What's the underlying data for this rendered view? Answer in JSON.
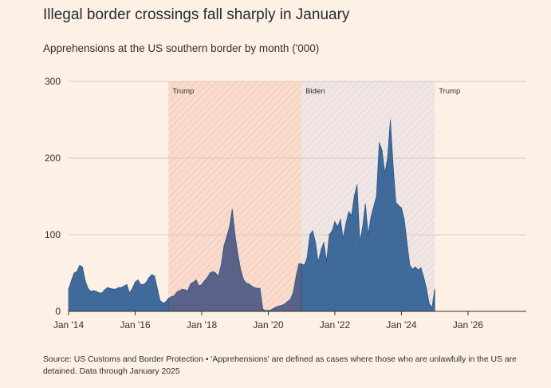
{
  "header": {
    "title": "Illegal border crossings fall sharply in January",
    "subtitle": "Apprehensions at the US southern border by month ('000)"
  },
  "footer": {
    "source": "Source: US Customs and Border Protection • 'Apprehensions' are defined as cases where those who are unlawfully in the US are detained. Data through January 2025"
  },
  "colors": {
    "background": "#fdf1e5",
    "area": "#3f6a99",
    "area_trump1": "#5a6289",
    "area_stroke": "#2d5485",
    "grid": "#d9c9bd",
    "trump_shade": "#f6d4c3",
    "biden_shade": "#dfe1ee"
  },
  "chart_data": {
    "type": "area",
    "title": "Illegal border crossings fall sharply in January",
    "subtitle": "Apprehensions at the US southern border by month ('000)",
    "xlabel": "",
    "ylabel": "",
    "ylim": [
      0,
      300
    ],
    "xlim": [
      "2014-01",
      "2027-10"
    ],
    "y_ticks": [
      0,
      100,
      200,
      300
    ],
    "x_ticks": [
      {
        "date": "2014-01",
        "label": "Jan '14"
      },
      {
        "date": "2016-01",
        "label": "Jan '16"
      },
      {
        "date": "2018-01",
        "label": "Jan '18"
      },
      {
        "date": "2020-01",
        "label": "Jan '20"
      },
      {
        "date": "2022-01",
        "label": "Jan '22"
      },
      {
        "date": "2024-01",
        "label": "Jan '24"
      },
      {
        "date": "2026-01",
        "label": "Jan '26"
      }
    ],
    "grid": true,
    "periods": [
      {
        "label": "Trump",
        "start": "2017-01",
        "end": "2021-01",
        "style": "trump"
      },
      {
        "label": "Biden",
        "start": "2021-01",
        "end": "2025-01",
        "style": "biden"
      },
      {
        "label": "Trump",
        "start": "2025-01",
        "end": null,
        "style": "trump"
      }
    ],
    "series": [
      {
        "x": [
          "2014-01",
          "2014-02",
          "2014-03",
          "2014-04",
          "2014-05",
          "2014-06",
          "2014-07",
          "2014-08",
          "2014-09",
          "2014-10",
          "2014-11",
          "2014-12",
          "2015-01",
          "2015-02",
          "2015-03",
          "2015-04",
          "2015-05",
          "2015-06",
          "2015-07",
          "2015-08",
          "2015-09",
          "2015-10",
          "2015-11",
          "2015-12",
          "2016-01",
          "2016-02",
          "2016-03",
          "2016-04",
          "2016-05",
          "2016-06",
          "2016-07",
          "2016-08",
          "2016-09",
          "2016-10",
          "2016-11",
          "2016-12",
          "2017-01",
          "2017-02",
          "2017-03",
          "2017-04",
          "2017-05",
          "2017-06",
          "2017-07",
          "2017-08",
          "2017-09",
          "2017-10",
          "2017-11",
          "2017-12",
          "2018-01",
          "2018-02",
          "2018-03",
          "2018-04",
          "2018-05",
          "2018-06",
          "2018-07",
          "2018-08",
          "2018-09",
          "2018-10",
          "2018-11",
          "2018-12",
          "2019-01",
          "2019-02",
          "2019-03",
          "2019-04",
          "2019-05",
          "2019-06",
          "2019-07",
          "2019-08",
          "2019-09",
          "2019-10",
          "2019-11",
          "2019-12",
          "2020-01",
          "2020-02",
          "2020-03",
          "2020-04",
          "2020-05",
          "2020-06",
          "2020-07",
          "2020-08",
          "2020-09",
          "2020-10",
          "2020-11",
          "2020-12",
          "2021-01",
          "2021-02",
          "2021-03",
          "2021-04",
          "2021-05",
          "2021-06",
          "2021-07",
          "2021-08",
          "2021-09",
          "2021-10",
          "2021-11",
          "2021-12",
          "2022-01",
          "2022-02",
          "2022-03",
          "2022-04",
          "2022-05",
          "2022-06",
          "2022-07",
          "2022-08",
          "2022-09",
          "2022-10",
          "2022-11",
          "2022-12",
          "2023-01",
          "2023-02",
          "2023-03",
          "2023-04",
          "2023-05",
          "2023-06",
          "2023-07",
          "2023-08",
          "2023-09",
          "2023-10",
          "2023-11",
          "2023-12",
          "2024-01",
          "2024-02",
          "2024-03",
          "2024-04",
          "2024-05",
          "2024-06",
          "2024-07",
          "2024-08",
          "2024-09",
          "2024-10",
          "2024-11",
          "2024-12",
          "2025-01"
        ],
        "values": [
          29,
          40,
          50,
          52,
          60,
          58,
          40,
          30,
          26,
          27,
          26,
          24,
          24,
          28,
          31,
          30,
          29,
          29,
          31,
          31,
          33,
          35,
          24,
          30,
          38,
          41,
          35,
          35,
          38,
          44,
          48,
          46,
          30,
          14,
          11,
          12,
          17,
          19,
          20,
          25,
          27,
          29,
          28,
          27,
          36,
          38,
          41,
          33,
          35,
          40,
          44,
          50,
          52,
          50,
          46,
          60,
          85,
          97,
          110,
          133,
          100,
          75,
          55,
          42,
          37,
          36,
          33,
          31,
          30,
          30,
          3,
          1,
          1,
          2,
          4,
          6,
          7,
          8,
          10,
          13,
          16,
          25,
          45,
          62,
          62,
          60,
          70,
          100,
          105,
          90,
          64,
          80,
          90,
          65,
          100,
          105,
          117,
          110,
          120,
          95,
          115,
          130,
          125,
          150,
          165,
          90,
          110,
          140,
          100,
          123,
          137,
          150,
          220,
          210,
          180,
          200,
          250,
          190,
          142,
          138,
          135,
          120,
          90,
          60,
          55,
          58,
          54,
          57,
          45,
          30,
          10,
          5,
          29
        ]
      }
    ]
  }
}
